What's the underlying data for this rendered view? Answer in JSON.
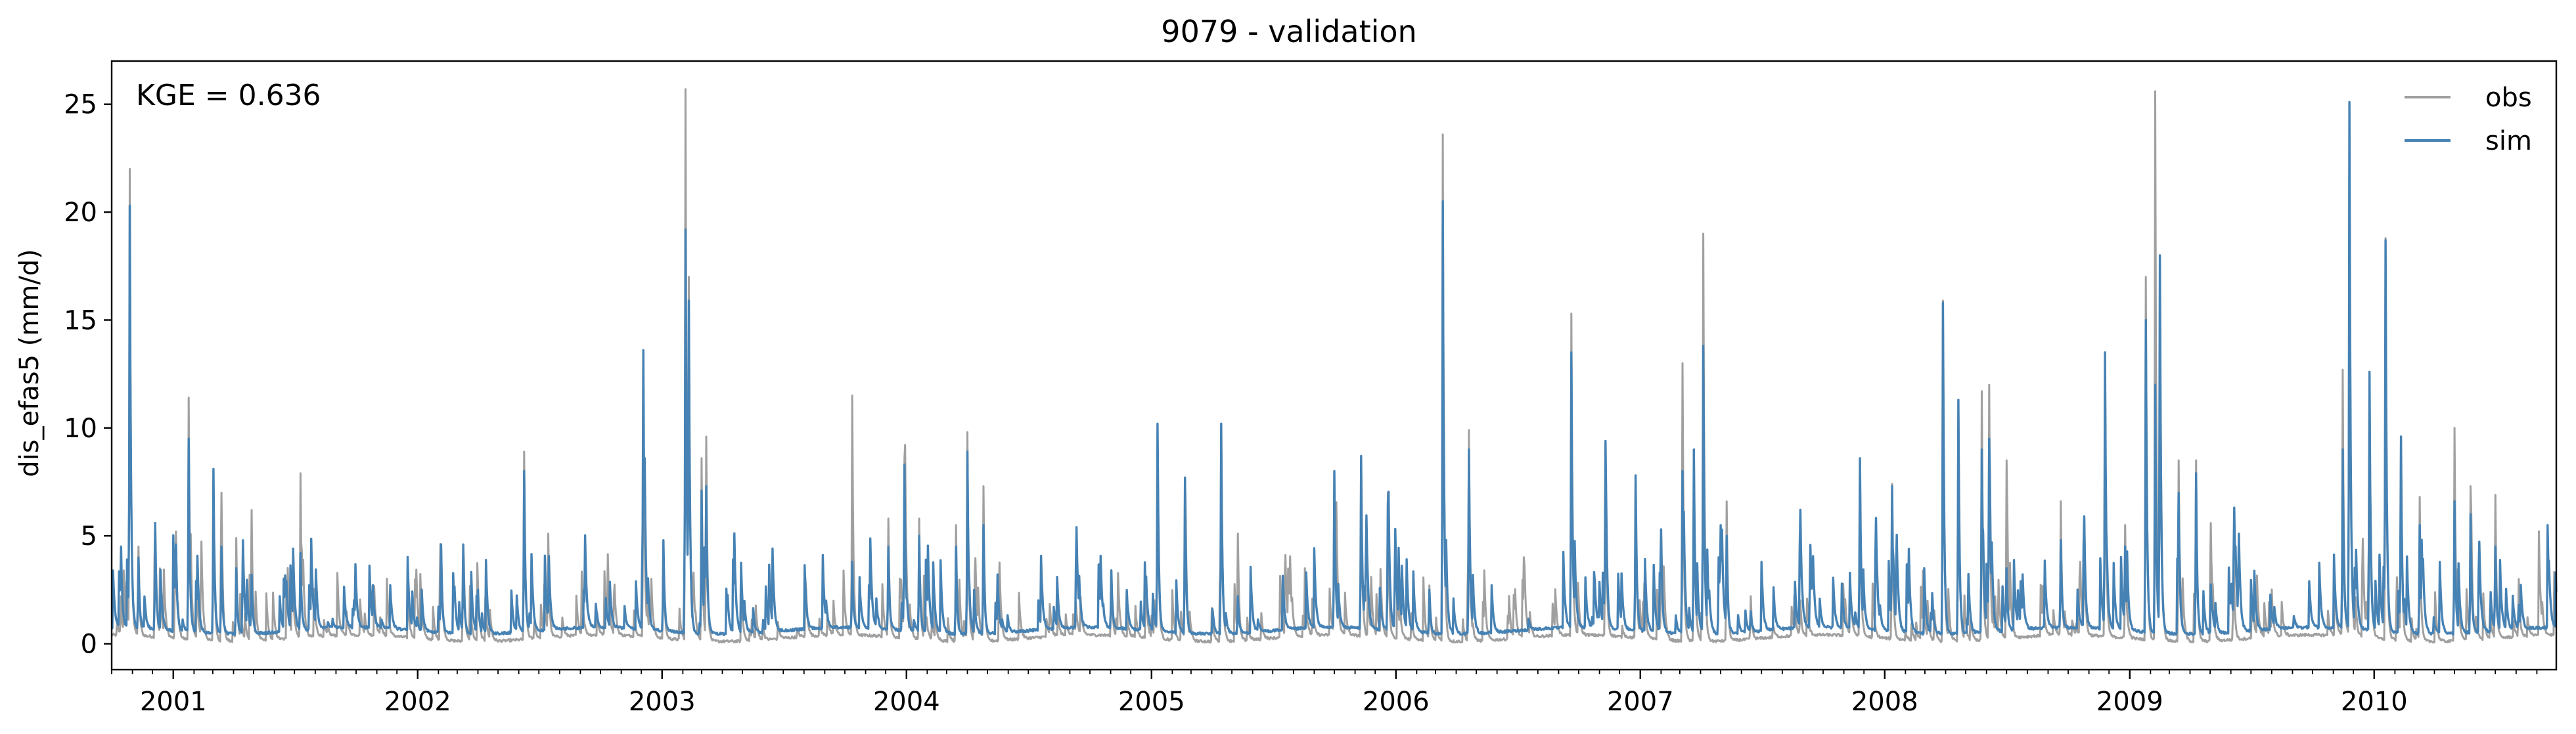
{
  "chart_data": {
    "type": "line",
    "title": "9079 - validation",
    "xlabel": "",
    "ylabel": "dis_efas5 (mm/d)",
    "annotation": "KGE = 0.636",
    "xlim": [
      "2000-10-01",
      "2010-09-30"
    ],
    "ylim": [
      -1.2,
      27
    ],
    "yticks": [
      0,
      5,
      10,
      15,
      20,
      25
    ],
    "xticks": [
      "2001",
      "2002",
      "2003",
      "2004",
      "2005",
      "2006",
      "2007",
      "2008",
      "2009",
      "2010"
    ],
    "grid": false,
    "legend_position": "top-right",
    "series": [
      {
        "name": "obs",
        "color": "#a0a0a0",
        "baseline": 0.05,
        "peaks": [
          [
            "2000-10-15",
            2.2
          ],
          [
            "2000-10-28",
            22.0
          ],
          [
            "2000-11-10",
            4.5
          ],
          [
            "2000-12-05",
            5.5
          ],
          [
            "2001-01-05",
            5.2
          ],
          [
            "2001-01-24",
            11.4
          ],
          [
            "2001-03-02",
            8.0
          ],
          [
            "2001-03-14",
            7.0
          ],
          [
            "2001-04-05",
            4.9
          ],
          [
            "2001-04-28",
            6.2
          ],
          [
            "2001-07-10",
            7.9
          ],
          [
            "2001-08-20",
            0.9
          ],
          [
            "2002-01-10",
            0.8
          ],
          [
            "2002-02-05",
            4.6
          ],
          [
            "2002-03-10",
            4.6
          ],
          [
            "2002-04-01",
            2.8
          ],
          [
            "2002-06-09",
            8.9
          ],
          [
            "2002-07-15",
            5.1
          ],
          [
            "2002-12-04",
            13.6
          ],
          [
            "2003-01-03",
            4.8
          ],
          [
            "2003-02-05",
            25.7
          ],
          [
            "2003-02-10",
            17.0
          ],
          [
            "2003-03-01",
            8.6
          ],
          [
            "2003-03-08",
            9.6
          ],
          [
            "2003-06-01",
            0.9
          ],
          [
            "2003-10-12",
            11.5
          ],
          [
            "2003-12-05",
            5.8
          ],
          [
            "2003-12-29",
            8.6
          ],
          [
            "2004-01-20",
            5.8
          ],
          [
            "2004-03-15",
            5.5
          ],
          [
            "2004-04-01",
            9.8
          ],
          [
            "2004-04-25",
            7.3
          ],
          [
            "2004-11-02",
            3.4
          ],
          [
            "2005-01-10",
            10.0
          ],
          [
            "2005-02-20",
            7.7
          ],
          [
            "2005-04-15",
            10.2
          ],
          [
            "2005-05-10",
            5.1
          ],
          [
            "2005-10-01",
            8.0
          ],
          [
            "2005-11-10",
            8.7
          ],
          [
            "2005-12-20",
            7.0
          ],
          [
            "2006-02-20",
            2.7
          ],
          [
            "2006-03-12",
            23.6
          ],
          [
            "2006-04-20",
            9.9
          ],
          [
            "2006-09-20",
            15.3
          ],
          [
            "2006-11-10",
            9.4
          ],
          [
            "2006-12-25",
            7.8
          ],
          [
            "2007-02-01",
            5.3
          ],
          [
            "2007-03-05",
            13.0
          ],
          [
            "2007-03-22",
            9.0
          ],
          [
            "2007-04-05",
            19.0
          ],
          [
            "2007-05-10",
            6.6
          ],
          [
            "2007-06-15",
            2.2
          ],
          [
            "2007-08-28",
            2.0
          ],
          [
            "2007-11-25",
            8.6
          ],
          [
            "2008-01-12",
            7.4
          ],
          [
            "2008-03-28",
            15.9
          ],
          [
            "2008-04-20",
            11.3
          ],
          [
            "2008-05-25",
            11.7
          ],
          [
            "2008-06-05",
            12.0
          ],
          [
            "2008-07-01",
            8.5
          ],
          [
            "2008-09-20",
            6.6
          ],
          [
            "2008-10-25",
            5.9
          ],
          [
            "2008-11-25",
            13.5
          ],
          [
            "2008-12-25",
            5.5
          ],
          [
            "2009-01-25",
            17.0
          ],
          [
            "2009-02-08",
            25.6
          ],
          [
            "2009-02-15",
            18.0
          ],
          [
            "2009-03-15",
            8.5
          ],
          [
            "2009-04-10",
            8.5
          ],
          [
            "2009-05-05",
            2.7
          ],
          [
            "2009-06-05",
            4.3
          ],
          [
            "2009-11-15",
            12.7
          ],
          [
            "2009-11-25",
            25.0
          ],
          [
            "2009-12-25",
            12.6
          ],
          [
            "2010-01-18",
            18.8
          ],
          [
            "2010-02-10",
            9.6
          ],
          [
            "2010-03-10",
            6.8
          ],
          [
            "2010-05-01",
            10.0
          ],
          [
            "2010-05-25",
            7.3
          ],
          [
            "2010-07-01",
            6.9
          ],
          [
            "2010-08-05",
            3.0
          ]
        ]
      },
      {
        "name": "sim",
        "color": "#4682b4",
        "baseline": 0.4,
        "peaks": [
          [
            "2000-10-15",
            4.5
          ],
          [
            "2000-10-28",
            20.3
          ],
          [
            "2000-11-10",
            4.0
          ],
          [
            "2000-12-05",
            5.6
          ],
          [
            "2001-01-05",
            4.6
          ],
          [
            "2001-01-24",
            9.5
          ],
          [
            "2001-03-02",
            8.1
          ],
          [
            "2001-03-14",
            4.5
          ],
          [
            "2001-04-05",
            3.5
          ],
          [
            "2001-04-28",
            3.2
          ],
          [
            "2001-07-10",
            4.2
          ],
          [
            "2001-08-20",
            1.0
          ],
          [
            "2002-01-10",
            0.9
          ],
          [
            "2002-02-05",
            4.6
          ],
          [
            "2002-03-10",
            4.6
          ],
          [
            "2002-04-01",
            2.5
          ],
          [
            "2002-06-09",
            8.0
          ],
          [
            "2002-07-15",
            1.5
          ],
          [
            "2002-12-04",
            13.6
          ],
          [
            "2003-01-03",
            4.8
          ],
          [
            "2003-02-05",
            19.2
          ],
          [
            "2003-02-10",
            15.9
          ],
          [
            "2003-03-01",
            7.1
          ],
          [
            "2003-03-08",
            7.3
          ],
          [
            "2003-06-01",
            1.1
          ],
          [
            "2003-10-12",
            3.8
          ],
          [
            "2003-12-05",
            4.5
          ],
          [
            "2003-12-29",
            8.3
          ],
          [
            "2004-01-20",
            5.0
          ],
          [
            "2004-03-15",
            4.5
          ],
          [
            "2004-04-01",
            8.9
          ],
          [
            "2004-04-25",
            5.5
          ],
          [
            "2004-11-02",
            3.4
          ],
          [
            "2005-01-10",
            10.2
          ],
          [
            "2005-02-20",
            7.7
          ],
          [
            "2005-04-15",
            10.2
          ],
          [
            "2005-05-10",
            2.2
          ],
          [
            "2005-10-01",
            8.0
          ],
          [
            "2005-11-10",
            8.7
          ],
          [
            "2005-12-20",
            6.5
          ],
          [
            "2006-02-20",
            2.5
          ],
          [
            "2006-03-12",
            20.5
          ],
          [
            "2006-04-20",
            9.0
          ],
          [
            "2006-09-20",
            13.5
          ],
          [
            "2006-11-10",
            9.4
          ],
          [
            "2006-12-25",
            7.8
          ],
          [
            "2007-02-01",
            5.3
          ],
          [
            "2007-03-05",
            8.0
          ],
          [
            "2007-03-22",
            9.0
          ],
          [
            "2007-04-05",
            13.8
          ],
          [
            "2007-05-10",
            5.0
          ],
          [
            "2007-06-15",
            1.5
          ],
          [
            "2007-08-28",
            2.0
          ],
          [
            "2007-11-25",
            8.6
          ],
          [
            "2008-01-12",
            7.3
          ],
          [
            "2008-03-28",
            15.8
          ],
          [
            "2008-04-20",
            11.3
          ],
          [
            "2008-05-25",
            9.0
          ],
          [
            "2008-06-05",
            9.5
          ],
          [
            "2008-07-01",
            3.5
          ],
          [
            "2008-09-20",
            4.8
          ],
          [
            "2008-10-25",
            5.9
          ],
          [
            "2008-11-25",
            13.5
          ],
          [
            "2008-12-25",
            4.5
          ],
          [
            "2009-01-25",
            15.0
          ],
          [
            "2009-02-08",
            12.0
          ],
          [
            "2009-02-15",
            18.0
          ],
          [
            "2009-03-15",
            7.0
          ],
          [
            "2009-04-10",
            7.9
          ],
          [
            "2009-05-05",
            1.5
          ],
          [
            "2009-06-05",
            3.4
          ],
          [
            "2009-11-15",
            9.0
          ],
          [
            "2009-11-25",
            25.1
          ],
          [
            "2009-12-25",
            12.6
          ],
          [
            "2010-01-18",
            18.7
          ],
          [
            "2010-02-10",
            9.6
          ],
          [
            "2010-03-10",
            5.5
          ],
          [
            "2010-05-01",
            6.6
          ],
          [
            "2010-05-25",
            6.0
          ],
          [
            "2010-07-01",
            4.5
          ],
          [
            "2010-08-05",
            1.8
          ]
        ]
      }
    ]
  }
}
